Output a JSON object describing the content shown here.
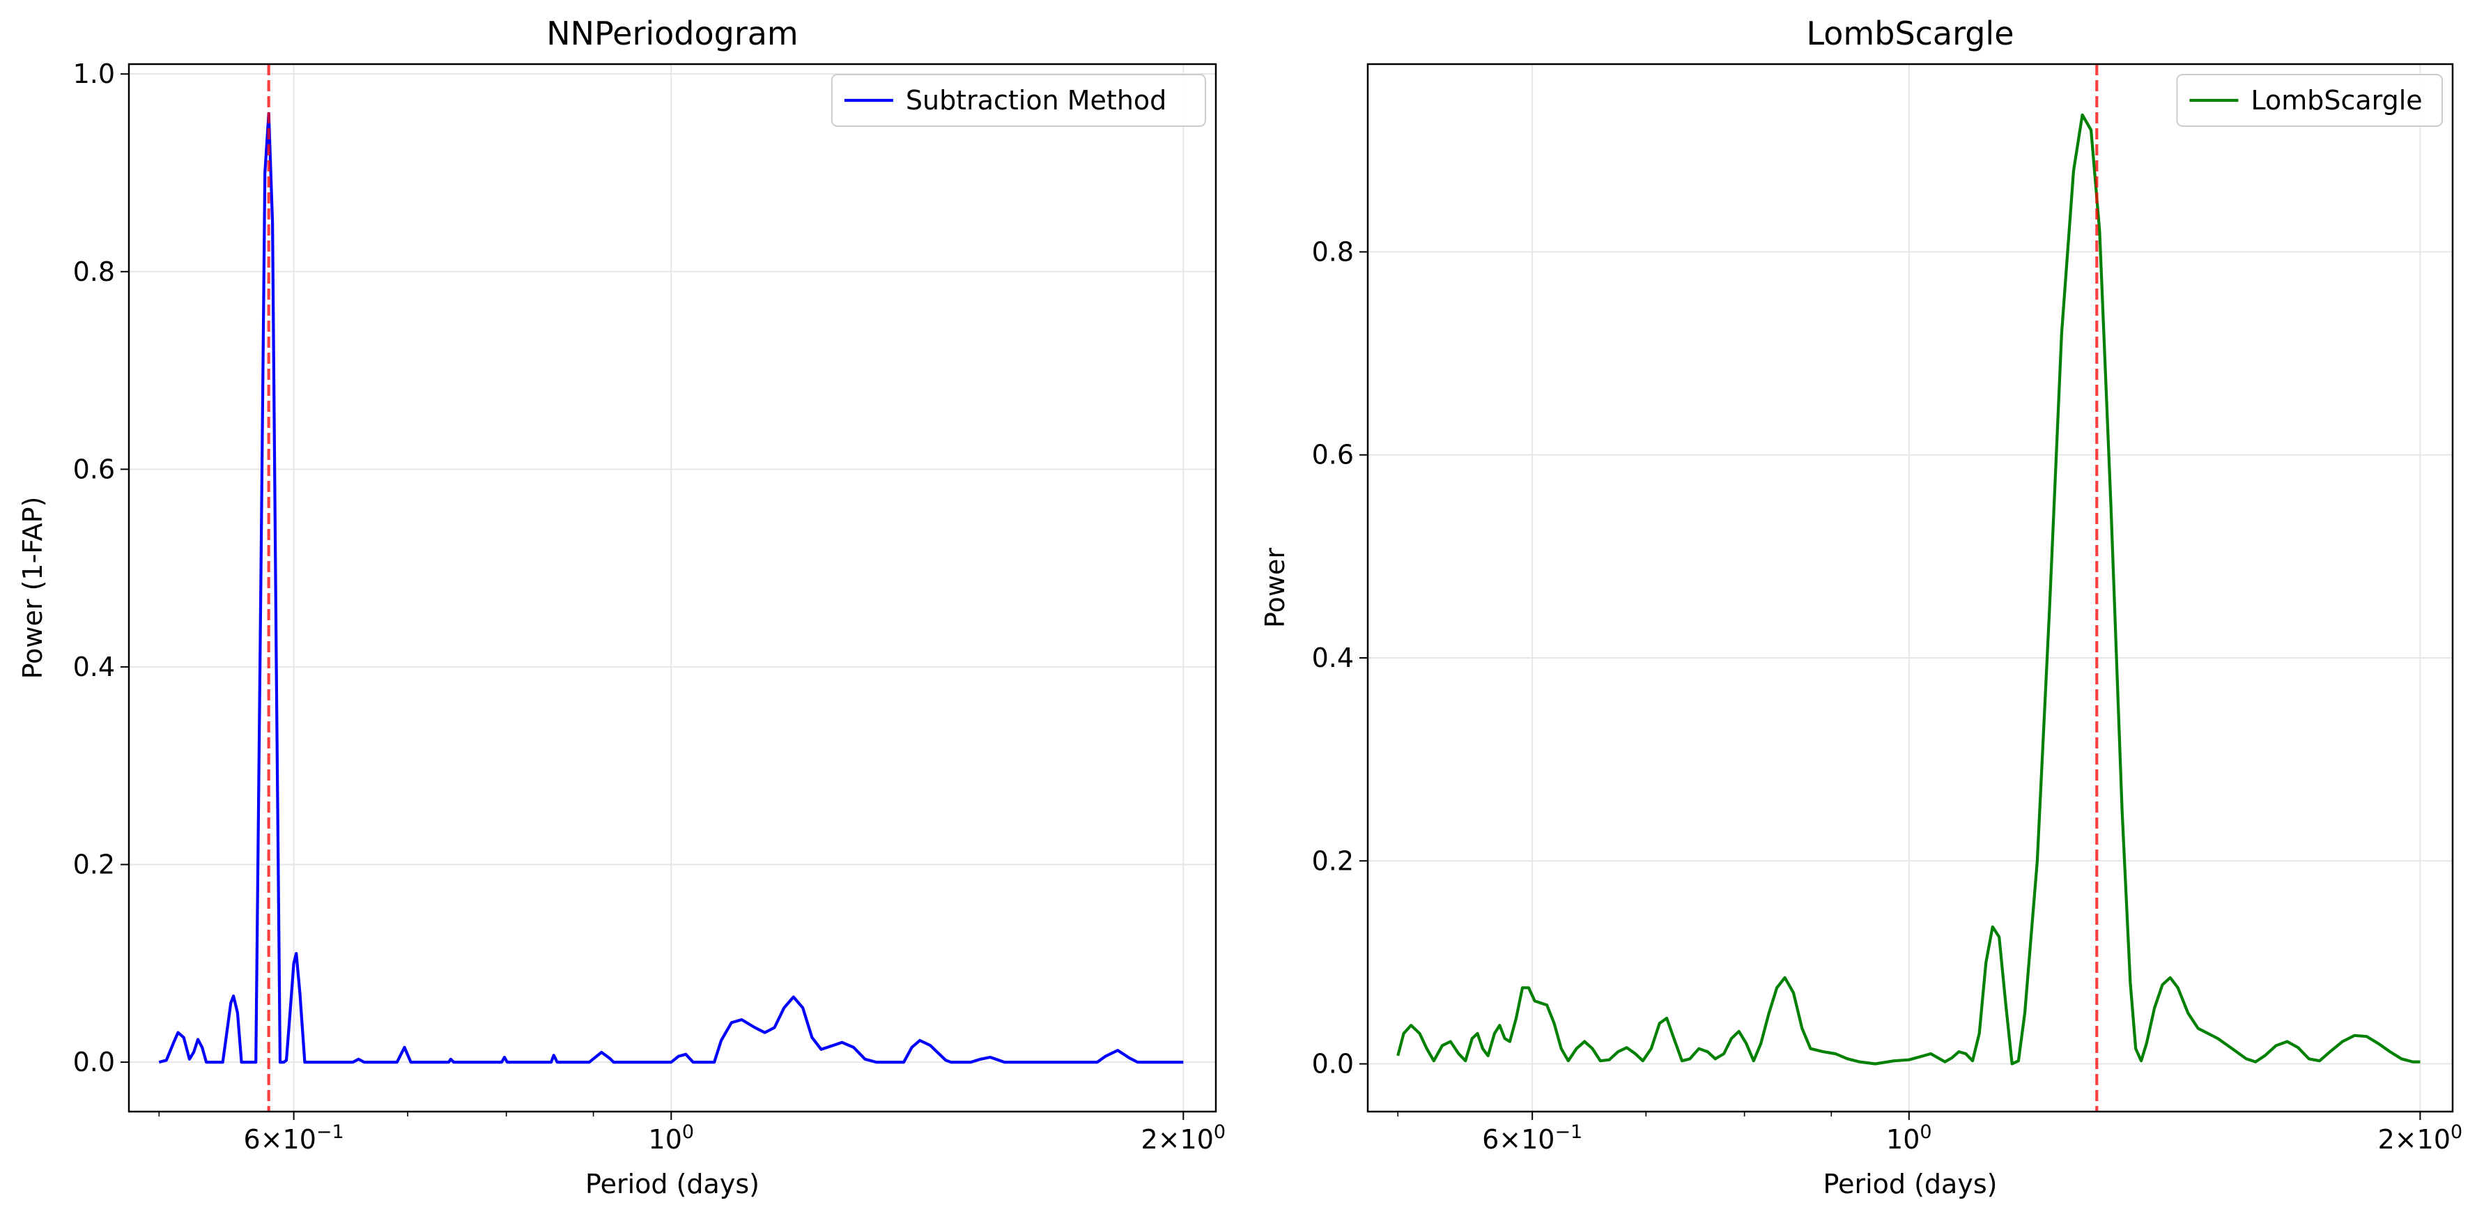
{
  "chart_data": [
    {
      "type": "line",
      "title": "NNPeriodogram",
      "xlabel": "Period (days)",
      "ylabel": "Power (1-FAP)",
      "xscale": "log",
      "xlim": [
        0.48,
        2.09
      ],
      "ylim": [
        -0.05,
        1.01
      ],
      "xticks": [
        {
          "value": 0.6,
          "base": "6×10",
          "exp": "−1"
        },
        {
          "value": 1.0,
          "base": "10",
          "exp": "0"
        },
        {
          "value": 2.0,
          "base": "2×10",
          "exp": "0"
        }
      ],
      "yticks": [
        {
          "value": 0.0,
          "label": "0.0"
        },
        {
          "value": 0.2,
          "label": "0.2"
        },
        {
          "value": 0.4,
          "label": "0.4"
        },
        {
          "value": 0.6,
          "label": "0.6"
        },
        {
          "value": 0.8,
          "label": "0.8"
        },
        {
          "value": 1.0,
          "label": "1.0"
        }
      ],
      "grid": true,
      "legend": "top-right",
      "marker_line": {
        "x": 0.58,
        "color": "#ff0000",
        "style": "dashed"
      },
      "series": [
        {
          "name": "Subtraction Method",
          "color": "#0000ff",
          "points": [
            [
              0.5,
              0.0
            ],
            [
              0.505,
              0.002
            ],
            [
              0.51,
              0.02
            ],
            [
              0.513,
              0.03
            ],
            [
              0.517,
              0.025
            ],
            [
              0.521,
              0.003
            ],
            [
              0.524,
              0.01
            ],
            [
              0.527,
              0.023
            ],
            [
              0.53,
              0.015
            ],
            [
              0.533,
              0.0
            ],
            [
              0.545,
              0.0
            ],
            [
              0.548,
              0.03
            ],
            [
              0.551,
              0.06
            ],
            [
              0.553,
              0.067
            ],
            [
              0.556,
              0.05
            ],
            [
              0.559,
              0.0
            ],
            [
              0.57,
              0.0
            ],
            [
              0.574,
              0.5
            ],
            [
              0.577,
              0.9
            ],
            [
              0.58,
              0.96
            ],
            [
              0.583,
              0.85
            ],
            [
              0.586,
              0.4
            ],
            [
              0.589,
              0.0
            ],
            [
              0.592,
              0.0
            ],
            [
              0.594,
              0.002
            ],
            [
              0.597,
              0.05
            ],
            [
              0.6,
              0.1
            ],
            [
              0.602,
              0.11
            ],
            [
              0.605,
              0.07
            ],
            [
              0.609,
              0.0
            ],
            [
              0.65,
              0.0
            ],
            [
              0.655,
              0.003
            ],
            [
              0.66,
              0.0
            ],
            [
              0.69,
              0.0
            ],
            [
              0.697,
              0.015
            ],
            [
              0.703,
              0.0
            ],
            [
              0.74,
              0.0
            ],
            [
              0.742,
              0.003
            ],
            [
              0.745,
              0.0
            ],
            [
              0.795,
              0.0
            ],
            [
              0.798,
              0.005
            ],
            [
              0.801,
              0.0
            ],
            [
              0.85,
              0.0
            ],
            [
              0.853,
              0.007
            ],
            [
              0.857,
              0.0
            ],
            [
              0.895,
              0.0
            ],
            [
              0.91,
              0.01
            ],
            [
              0.92,
              0.004
            ],
            [
              0.925,
              0.0
            ],
            [
              1.0,
              0.0
            ],
            [
              1.01,
              0.006
            ],
            [
              1.02,
              0.008
            ],
            [
              1.03,
              0.0
            ],
            [
              1.06,
              0.0
            ],
            [
              1.07,
              0.022
            ],
            [
              1.085,
              0.04
            ],
            [
              1.1,
              0.043
            ],
            [
              1.12,
              0.035
            ],
            [
              1.135,
              0.03
            ],
            [
              1.15,
              0.035
            ],
            [
              1.165,
              0.055
            ],
            [
              1.18,
              0.066
            ],
            [
              1.195,
              0.055
            ],
            [
              1.21,
              0.025
            ],
            [
              1.225,
              0.013
            ],
            [
              1.245,
              0.017
            ],
            [
              1.26,
              0.02
            ],
            [
              1.28,
              0.015
            ],
            [
              1.3,
              0.003
            ],
            [
              1.32,
              0.0
            ],
            [
              1.37,
              0.0
            ],
            [
              1.385,
              0.015
            ],
            [
              1.4,
              0.022
            ],
            [
              1.42,
              0.017
            ],
            [
              1.45,
              0.002
            ],
            [
              1.46,
              0.0
            ],
            [
              1.5,
              0.0
            ],
            [
              1.52,
              0.003
            ],
            [
              1.54,
              0.005
            ],
            [
              1.57,
              0.0
            ],
            [
              1.78,
              0.0
            ],
            [
              1.8,
              0.006
            ],
            [
              1.83,
              0.012
            ],
            [
              1.86,
              0.004
            ],
            [
              1.88,
              0.0
            ],
            [
              2.0,
              0.0
            ]
          ]
        }
      ]
    },
    {
      "type": "line",
      "title": "LombScargle",
      "xlabel": "Period (days)",
      "ylabel": "Power",
      "xscale": "log",
      "xlim": [
        0.48,
        2.09
      ],
      "ylim": [
        -0.047,
        0.985
      ],
      "xticks": [
        {
          "value": 0.6,
          "base": "6×10",
          "exp": "−1"
        },
        {
          "value": 1.0,
          "base": "10",
          "exp": "0"
        },
        {
          "value": 2.0,
          "base": "2×10",
          "exp": "0"
        }
      ],
      "yticks": [
        {
          "value": 0.0,
          "label": "0.0"
        },
        {
          "value": 0.2,
          "label": "0.2"
        },
        {
          "value": 0.4,
          "label": "0.4"
        },
        {
          "value": 0.6,
          "label": "0.6"
        },
        {
          "value": 0.8,
          "label": "0.8"
        }
      ],
      "grid": true,
      "legend": "top-right",
      "marker_line": {
        "x": 1.29,
        "color": "#ff0000",
        "style": "dashed"
      },
      "series": [
        {
          "name": "LombScargle",
          "color": "#008000",
          "points": [
            [
              0.5,
              0.008
            ],
            [
              0.504,
              0.03
            ],
            [
              0.509,
              0.038
            ],
            [
              0.515,
              0.03
            ],
            [
              0.52,
              0.015
            ],
            [
              0.525,
              0.003
            ],
            [
              0.531,
              0.018
            ],
            [
              0.537,
              0.022
            ],
            [
              0.543,
              0.01
            ],
            [
              0.548,
              0.003
            ],
            [
              0.553,
              0.025
            ],
            [
              0.557,
              0.03
            ],
            [
              0.561,
              0.015
            ],
            [
              0.565,
              0.008
            ],
            [
              0.57,
              0.03
            ],
            [
              0.574,
              0.038
            ],
            [
              0.578,
              0.025
            ],
            [
              0.582,
              0.022
            ],
            [
              0.587,
              0.045
            ],
            [
              0.592,
              0.075
            ],
            [
              0.597,
              0.075
            ],
            [
              0.602,
              0.062
            ],
            [
              0.607,
              0.06
            ],
            [
              0.612,
              0.058
            ],
            [
              0.618,
              0.04
            ],
            [
              0.624,
              0.015
            ],
            [
              0.63,
              0.003
            ],
            [
              0.637,
              0.015
            ],
            [
              0.644,
              0.022
            ],
            [
              0.651,
              0.015
            ],
            [
              0.658,
              0.003
            ],
            [
              0.666,
              0.004
            ],
            [
              0.674,
              0.012
            ],
            [
              0.682,
              0.016
            ],
            [
              0.69,
              0.01
            ],
            [
              0.697,
              0.003
            ],
            [
              0.705,
              0.015
            ],
            [
              0.713,
              0.04
            ],
            [
              0.72,
              0.045
            ],
            [
              0.727,
              0.025
            ],
            [
              0.735,
              0.003
            ],
            [
              0.743,
              0.005
            ],
            [
              0.752,
              0.015
            ],
            [
              0.761,
              0.012
            ],
            [
              0.769,
              0.005
            ],
            [
              0.778,
              0.01
            ],
            [
              0.786,
              0.025
            ],
            [
              0.794,
              0.032
            ],
            [
              0.802,
              0.02
            ],
            [
              0.81,
              0.003
            ],
            [
              0.818,
              0.02
            ],
            [
              0.827,
              0.05
            ],
            [
              0.836,
              0.075
            ],
            [
              0.845,
              0.085
            ],
            [
              0.855,
              0.07
            ],
            [
              0.865,
              0.035
            ],
            [
              0.875,
              0.015
            ],
            [
              0.89,
              0.012
            ],
            [
              0.905,
              0.01
            ],
            [
              0.92,
              0.005
            ],
            [
              0.935,
              0.002
            ],
            [
              0.955,
              0.0
            ],
            [
              0.98,
              0.003
            ],
            [
              1.0,
              0.004
            ],
            [
              1.02,
              0.008
            ],
            [
              1.03,
              0.01
            ],
            [
              1.04,
              0.006
            ],
            [
              1.05,
              0.002
            ],
            [
              1.06,
              0.006
            ],
            [
              1.07,
              0.012
            ],
            [
              1.08,
              0.01
            ],
            [
              1.09,
              0.003
            ],
            [
              1.1,
              0.03
            ],
            [
              1.11,
              0.1
            ],
            [
              1.12,
              0.135
            ],
            [
              1.13,
              0.125
            ],
            [
              1.14,
              0.06
            ],
            [
              1.15,
              0.0
            ],
            [
              1.16,
              0.003
            ],
            [
              1.17,
              0.05
            ],
            [
              1.19,
              0.2
            ],
            [
              1.21,
              0.45
            ],
            [
              1.23,
              0.72
            ],
            [
              1.25,
              0.88
            ],
            [
              1.265,
              0.935
            ],
            [
              1.28,
              0.92
            ],
            [
              1.295,
              0.82
            ],
            [
              1.315,
              0.55
            ],
            [
              1.335,
              0.25
            ],
            [
              1.35,
              0.08
            ],
            [
              1.36,
              0.015
            ],
            [
              1.37,
              0.003
            ],
            [
              1.38,
              0.02
            ],
            [
              1.395,
              0.055
            ],
            [
              1.41,
              0.078
            ],
            [
              1.425,
              0.085
            ],
            [
              1.44,
              0.075
            ],
            [
              1.46,
              0.05
            ],
            [
              1.48,
              0.035
            ],
            [
              1.5,
              0.03
            ],
            [
              1.52,
              0.025
            ],
            [
              1.55,
              0.015
            ],
            [
              1.58,
              0.005
            ],
            [
              1.6,
              0.002
            ],
            [
              1.62,
              0.008
            ],
            [
              1.645,
              0.018
            ],
            [
              1.67,
              0.022
            ],
            [
              1.695,
              0.016
            ],
            [
              1.72,
              0.005
            ],
            [
              1.745,
              0.003
            ],
            [
              1.77,
              0.012
            ],
            [
              1.8,
              0.022
            ],
            [
              1.83,
              0.028
            ],
            [
              1.86,
              0.027
            ],
            [
              1.89,
              0.02
            ],
            [
              1.92,
              0.012
            ],
            [
              1.95,
              0.005
            ],
            [
              1.98,
              0.002
            ],
            [
              2.0,
              0.002
            ]
          ]
        }
      ]
    }
  ]
}
